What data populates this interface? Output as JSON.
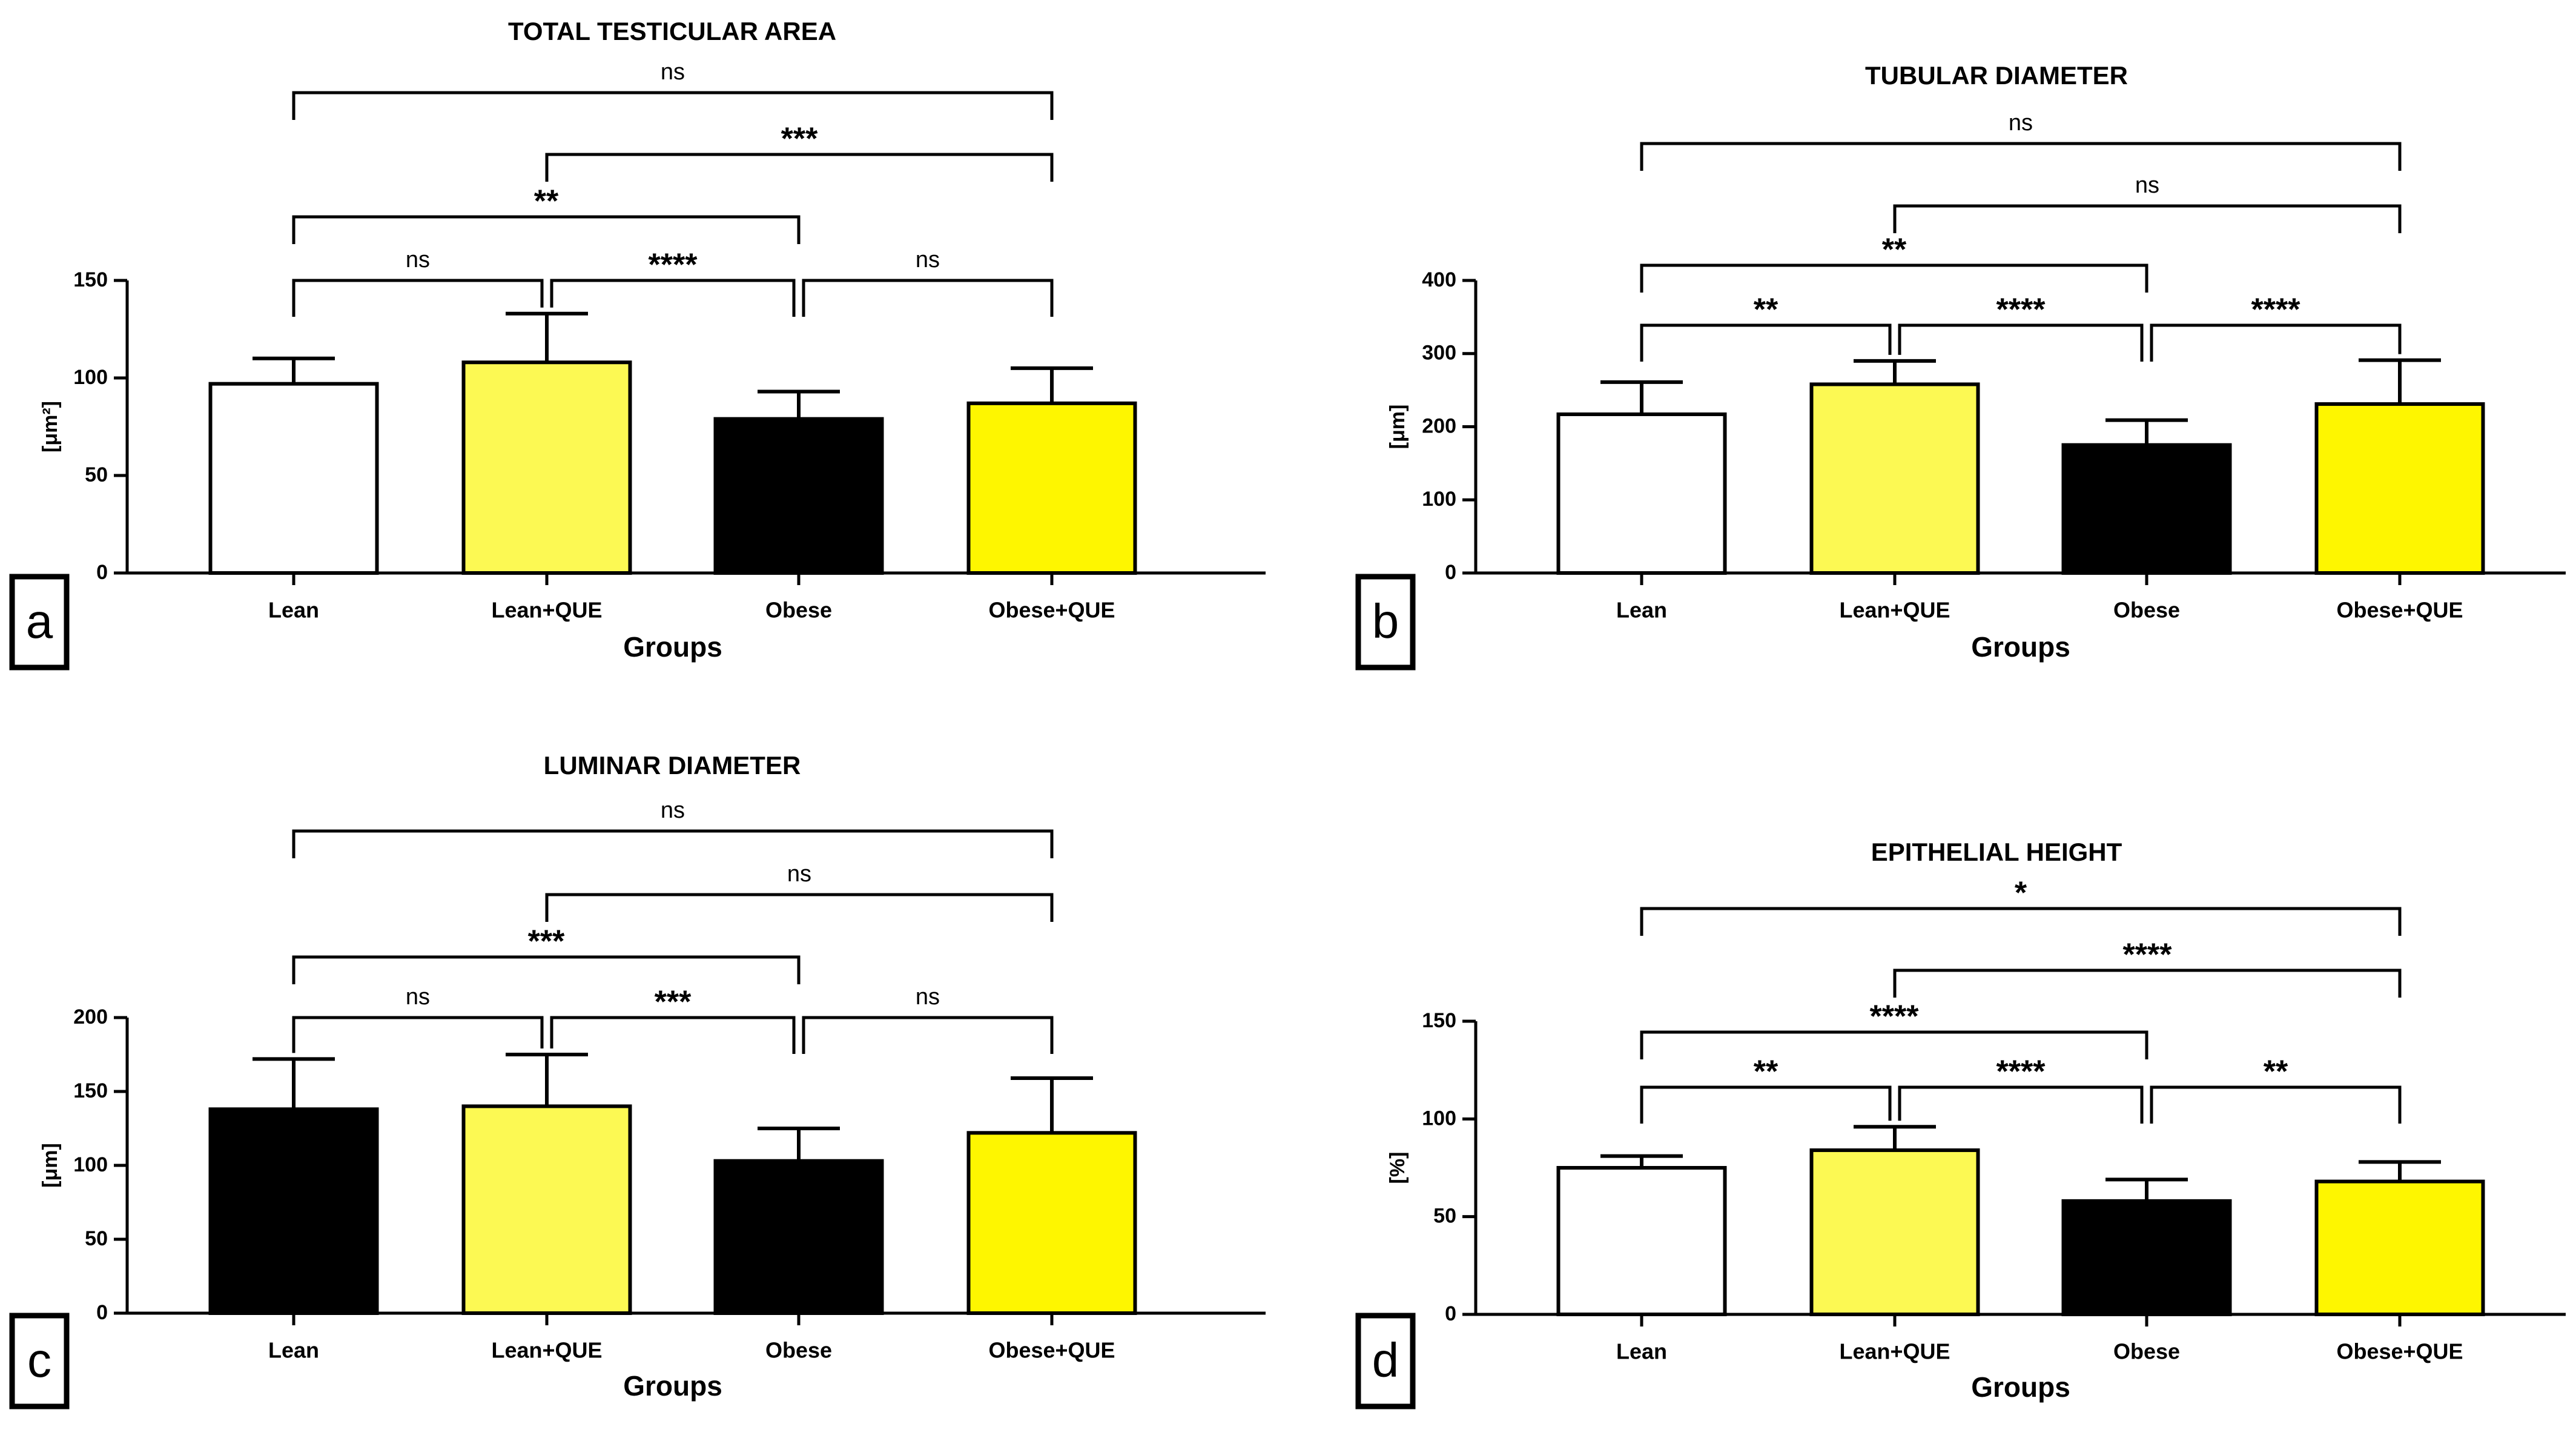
{
  "colors": {
    "white": "#ffffff",
    "light_yellow": "#fcf953",
    "black": "#000000",
    "yellow": "#fef600"
  },
  "chart_data": [
    {
      "panel": "a",
      "type": "bar",
      "title": "TOTAL TESTICULAR AREA",
      "xlabel": "Groups",
      "ylabel": "[μm²]",
      "categories": [
        "Lean",
        "Lean+QUE",
        "Obese",
        "Obese+QUE"
      ],
      "values": [
        97,
        108,
        79,
        87
      ],
      "errors": [
        13,
        25,
        14,
        18
      ],
      "bar_colors": [
        "#ffffff",
        "#fcf953",
        "#000000",
        "#fef600"
      ],
      "ylim": [
        0,
        150
      ],
      "yticks": [
        0,
        50,
        100,
        150
      ],
      "comparisons": [
        {
          "from": 0,
          "to": 1,
          "label": "ns"
        },
        {
          "from": 1,
          "to": 2,
          "label": "****"
        },
        {
          "from": 2,
          "to": 3,
          "label": "ns"
        },
        {
          "from": 0,
          "to": 2,
          "label": "**"
        },
        {
          "from": 1,
          "to": 3,
          "label": "***"
        },
        {
          "from": 0,
          "to": 3,
          "label": "ns"
        }
      ]
    },
    {
      "panel": "b",
      "type": "bar",
      "title": "TUBULAR DIAMETER",
      "xlabel": "Groups",
      "ylabel": "[μm]",
      "categories": [
        "Lean",
        "Lean+QUE",
        "Obese",
        "Obese+QUE"
      ],
      "values": [
        217,
        258,
        175,
        231
      ],
      "errors": [
        44,
        32,
        34,
        60
      ],
      "bar_colors": [
        "#ffffff",
        "#fcf953",
        "#000000",
        "#fef600"
      ],
      "ylim": [
        0,
        400
      ],
      "yticks": [
        0,
        100,
        200,
        300,
        400
      ],
      "comparisons": [
        {
          "from": 0,
          "to": 1,
          "label": "**"
        },
        {
          "from": 1,
          "to": 2,
          "label": "****"
        },
        {
          "from": 2,
          "to": 3,
          "label": "****"
        },
        {
          "from": 0,
          "to": 2,
          "label": "**"
        },
        {
          "from": 1,
          "to": 3,
          "label": "ns"
        },
        {
          "from": 0,
          "to": 3,
          "label": "ns"
        }
      ]
    },
    {
      "panel": "c",
      "type": "bar",
      "title": "LUMINAR DIAMETER",
      "xlabel": "Groups",
      "ylabel": "[μm]",
      "categories": [
        "Lean",
        "Lean+QUE",
        "Obese",
        "Obese+QUE"
      ],
      "values": [
        138,
        140,
        103,
        122
      ],
      "errors": [
        34,
        35,
        22,
        37
      ],
      "bar_colors": [
        "#000000",
        "#fcf953",
        "#000000",
        "#fef600"
      ],
      "ylim": [
        0,
        200
      ],
      "yticks": [
        0,
        50,
        100,
        150,
        200
      ],
      "comparisons": [
        {
          "from": 0,
          "to": 1,
          "label": "ns"
        },
        {
          "from": 1,
          "to": 2,
          "label": "***"
        },
        {
          "from": 2,
          "to": 3,
          "label": "ns"
        },
        {
          "from": 0,
          "to": 2,
          "label": "***"
        },
        {
          "from": 1,
          "to": 3,
          "label": "ns"
        },
        {
          "from": 0,
          "to": 3,
          "label": "ns"
        }
      ]
    },
    {
      "panel": "d",
      "type": "bar",
      "title": "EPITHELIAL HEIGHT",
      "xlabel": "Groups",
      "ylabel": "[%]",
      "categories": [
        "Lean",
        "Lean+QUE",
        "Obese",
        "Obese+QUE"
      ],
      "values": [
        75,
        84,
        58,
        68
      ],
      "errors": [
        6,
        12,
        11,
        10
      ],
      "bar_colors": [
        "#ffffff",
        "#fcf953",
        "#000000",
        "#fef600"
      ],
      "ylim": [
        0,
        150
      ],
      "yticks": [
        0,
        50,
        100,
        150
      ],
      "comparisons": [
        {
          "from": 0,
          "to": 1,
          "label": "**"
        },
        {
          "from": 1,
          "to": 2,
          "label": "****"
        },
        {
          "from": 2,
          "to": 3,
          "label": "**"
        },
        {
          "from": 0,
          "to": 2,
          "label": "****"
        },
        {
          "from": 1,
          "to": 3,
          "label": "****"
        },
        {
          "from": 0,
          "to": 3,
          "label": "*"
        }
      ]
    }
  ]
}
